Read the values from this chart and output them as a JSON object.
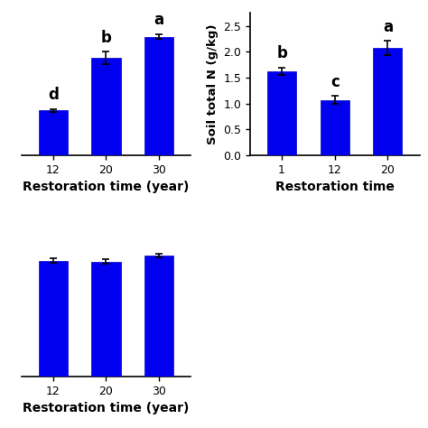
{
  "chart1": {
    "categories": [
      "12",
      "20",
      "30"
    ],
    "values": [
      8.5,
      18.5,
      22.5
    ],
    "errors": [
      0.3,
      1.2,
      0.5
    ],
    "letters": [
      "d",
      "b",
      "a"
    ],
    "ylabel": "",
    "xlabel": "Restoration time (year)",
    "ylim": [
      0,
      27
    ],
    "yticks": []
  },
  "chart2": {
    "categories": [
      "1",
      "12",
      "20"
    ],
    "values": [
      1.63,
      1.07,
      2.07
    ],
    "errors": [
      0.07,
      0.08,
      0.14
    ],
    "letters": [
      "b",
      "c",
      "a"
    ],
    "ylabel": "Soil total N (g/kg)",
    "xlabel": "Restoration time",
    "ylim": [
      0.0,
      2.75
    ],
    "yticks": [
      0.0,
      0.5,
      1.0,
      1.5,
      2.0,
      2.5
    ]
  },
  "chart3": {
    "categories": [
      "12",
      "20",
      "30"
    ],
    "values": [
      12.2,
      12.1,
      12.7
    ],
    "errors": [
      0.25,
      0.25,
      0.2
    ],
    "letters": [
      "",
      "",
      ""
    ],
    "ylabel": "",
    "xlabel": "Restoration time (year)",
    "ylim": [
      0,
      15
    ],
    "yticks": []
  },
  "bar_color": "#0000EE",
  "bar_color_edge": "#0000CC",
  "error_color": "black",
  "letter_fontsize": 12,
  "axis_label_fontsize": 10,
  "tick_fontsize": 9,
  "bar_width": 0.55
}
